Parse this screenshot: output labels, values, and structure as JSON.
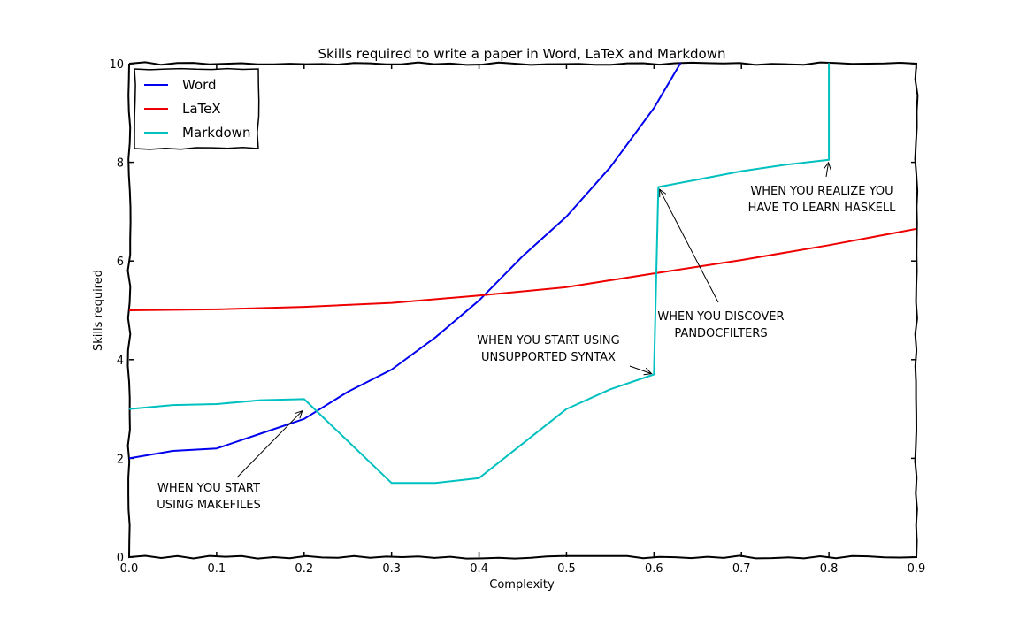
{
  "chart_data": {
    "type": "line",
    "title": "Skills required to write a paper in Word, LaTeX and Markdown",
    "xlabel": "Complexity",
    "ylabel": "Skills required",
    "xlim": [
      0,
      0.9
    ],
    "ylim": [
      0,
      10
    ],
    "xticks": [
      "0.0",
      "0.1",
      "0.2",
      "0.3",
      "0.4",
      "0.5",
      "0.6",
      "0.7",
      "0.8",
      "0.9"
    ],
    "yticks": [
      "0",
      "2",
      "4",
      "6",
      "8",
      "10"
    ],
    "grid": false,
    "legend_position": "top-left",
    "series": [
      {
        "name": "Word",
        "color": "#0000ee",
        "x": [
          0.0,
          0.05,
          0.1,
          0.15,
          0.2,
          0.25,
          0.3,
          0.35,
          0.4,
          0.45,
          0.5,
          0.55,
          0.6,
          0.63
        ],
        "y": [
          2.0,
          2.15,
          2.2,
          2.5,
          2.8,
          3.35,
          3.8,
          4.45,
          5.2,
          6.1,
          6.9,
          7.9,
          9.1,
          10.0
        ]
      },
      {
        "name": "LaTeX",
        "color": "#ee0000",
        "x": [
          0.0,
          0.1,
          0.2,
          0.3,
          0.4,
          0.5,
          0.6,
          0.7,
          0.8,
          0.9
        ],
        "y": [
          5.0,
          5.02,
          5.07,
          5.15,
          5.3,
          5.47,
          5.75,
          6.02,
          6.32,
          6.65
        ]
      },
      {
        "name": "Markdown",
        "color": "#00c0c0",
        "x": [
          0.0,
          0.05,
          0.1,
          0.15,
          0.2,
          0.25,
          0.3,
          0.35,
          0.4,
          0.45,
          0.5,
          0.55,
          0.6,
          0.605,
          0.65,
          0.7,
          0.75,
          0.8,
          0.8
        ],
        "y": [
          3.0,
          3.08,
          3.1,
          3.18,
          3.2,
          2.35,
          1.5,
          1.5,
          1.6,
          2.3,
          3.0,
          3.4,
          3.7,
          7.5,
          7.65,
          7.82,
          7.95,
          8.05,
          10.0
        ]
      }
    ],
    "annotations": [
      {
        "lines": [
          "WHEN YOU START",
          "USING MAKEFILES"
        ],
        "target": [
          0.2,
          3.0
        ]
      },
      {
        "lines": [
          "WHEN YOU START USING",
          "UNSUPPORTED SYNTAX"
        ],
        "target": [
          0.6,
          3.7
        ]
      },
      {
        "lines": [
          "WHEN YOU DISCOVER",
          "PANDOCFILTERS"
        ],
        "target": [
          0.605,
          7.5
        ]
      },
      {
        "lines": [
          "WHEN YOU REALIZE YOU",
          "HAVE TO LEARN HASKELL"
        ],
        "target": [
          0.8,
          8.05
        ]
      }
    ]
  }
}
